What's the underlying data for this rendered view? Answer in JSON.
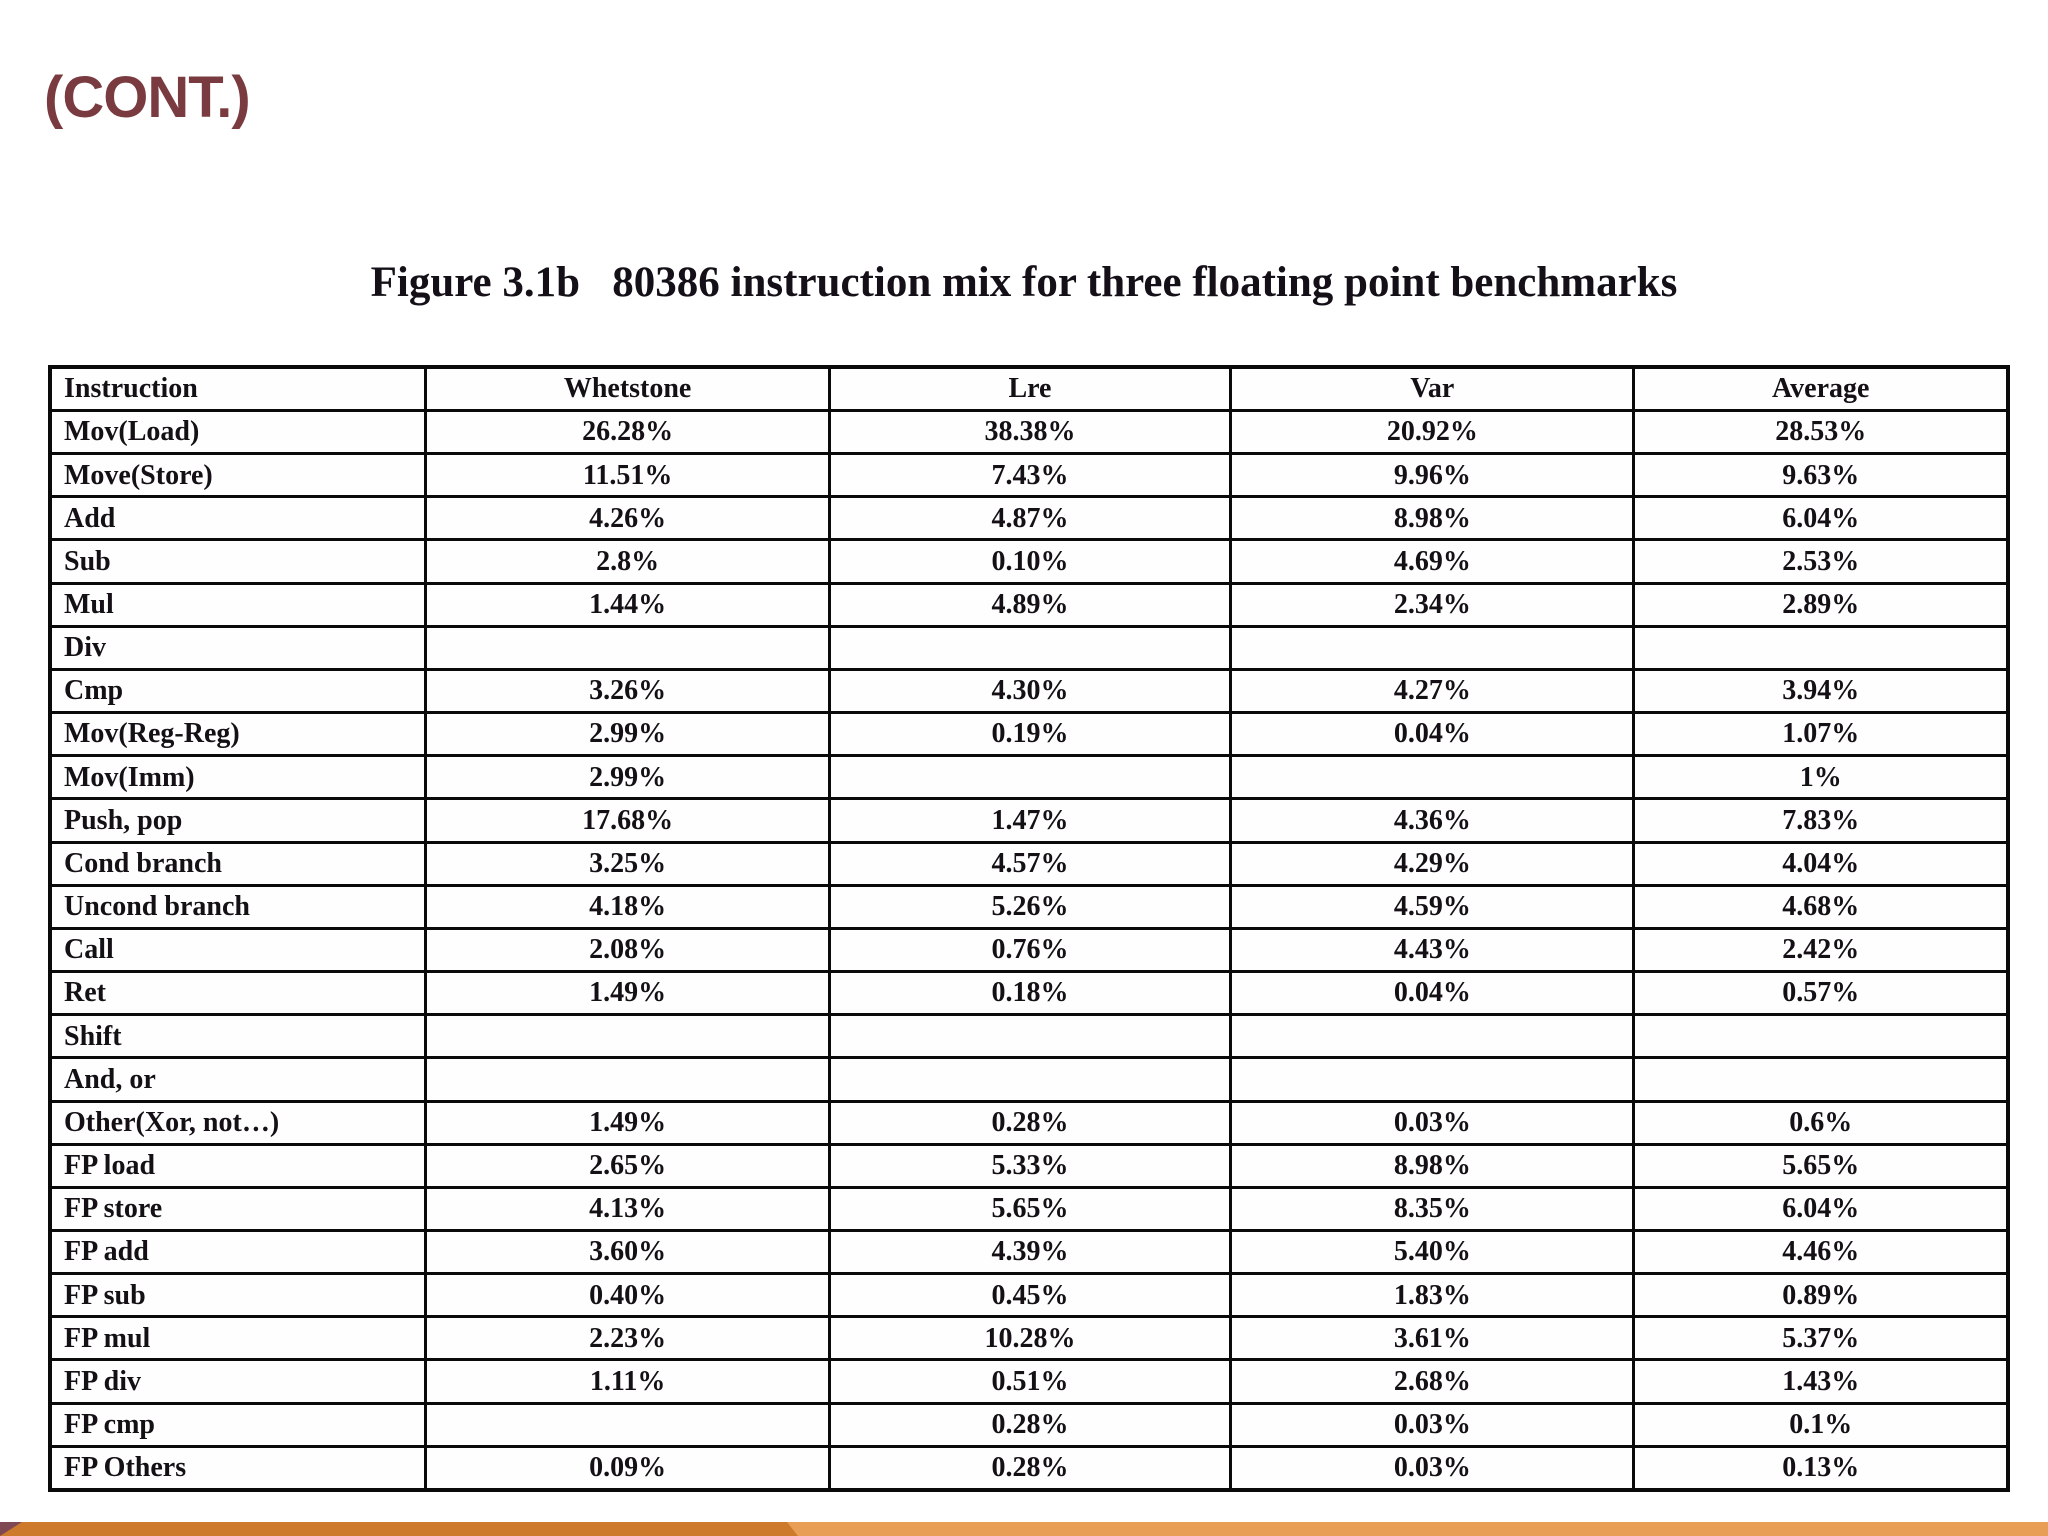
{
  "slide": {
    "heading": "(CONT.)",
    "heading_color": "#7a3b40",
    "caption": "Figure 3.1b   80386 instruction mix for three floating point benchmarks"
  },
  "table": {
    "columns": [
      "Instruction",
      "Whetstone",
      "Lre",
      "Var",
      "Average"
    ],
    "rows": [
      [
        "Mov(Load)",
        "26.28%",
        "38.38%",
        "20.92%",
        "28.53%"
      ],
      [
        "Move(Store)",
        "11.51%",
        "7.43%",
        "9.96%",
        "9.63%"
      ],
      [
        "Add",
        "4.26%",
        "4.87%",
        "8.98%",
        "6.04%"
      ],
      [
        "Sub",
        "2.8%",
        "0.10%",
        "4.69%",
        "2.53%"
      ],
      [
        "Mul",
        "1.44%",
        "4.89%",
        "2.34%",
        "2.89%"
      ],
      [
        "Div",
        "",
        "",
        "",
        ""
      ],
      [
        "Cmp",
        "3.26%",
        "4.30%",
        "4.27%",
        "3.94%"
      ],
      [
        "Mov(Reg-Reg)",
        "2.99%",
        "0.19%",
        "0.04%",
        "1.07%"
      ],
      [
        "Mov(Imm)",
        "2.99%",
        "",
        "",
        "1%"
      ],
      [
        "Push, pop",
        "17.68%",
        "1.47%",
        "4.36%",
        "7.83%"
      ],
      [
        "Cond branch",
        "3.25%",
        "4.57%",
        "4.29%",
        "4.04%"
      ],
      [
        "Uncond branch",
        "4.18%",
        "5.26%",
        "4.59%",
        "4.68%"
      ],
      [
        "Call",
        "2.08%",
        "0.76%",
        "4.43%",
        "2.42%"
      ],
      [
        "Ret",
        "1.49%",
        "0.18%",
        "0.04%",
        "0.57%"
      ],
      [
        "Shift",
        "",
        "",
        "",
        ""
      ],
      [
        "And, or",
        "",
        "",
        "",
        ""
      ],
      [
        "Other(Xor, not…)",
        "1.49%",
        "0.28%",
        "0.03%",
        "0.6%"
      ],
      [
        "FP load",
        "2.65%",
        "5.33%",
        "8.98%",
        "5.65%"
      ],
      [
        "FP store",
        "4.13%",
        "5.65%",
        "8.35%",
        "6.04%"
      ],
      [
        "FP add",
        "3.60%",
        "4.39%",
        "5.40%",
        "4.46%"
      ],
      [
        "FP sub",
        "0.40%",
        "0.45%",
        "1.83%",
        "0.89%"
      ],
      [
        "FP mul",
        "2.23%",
        "10.28%",
        "3.61%",
        "5.37%"
      ],
      [
        "FP div",
        "1.11%",
        "0.51%",
        "2.68%",
        "1.43%"
      ],
      [
        "FP cmp",
        "",
        "0.28%",
        "0.03%",
        "0.1%"
      ],
      [
        "FP Others",
        "0.09%",
        "0.28%",
        "0.03%",
        "0.13%"
      ]
    ]
  },
  "footer": {
    "dark_orange": "#ce7a2c",
    "light_orange": "#e89f55",
    "maroon_wedge": "#7e4953"
  }
}
